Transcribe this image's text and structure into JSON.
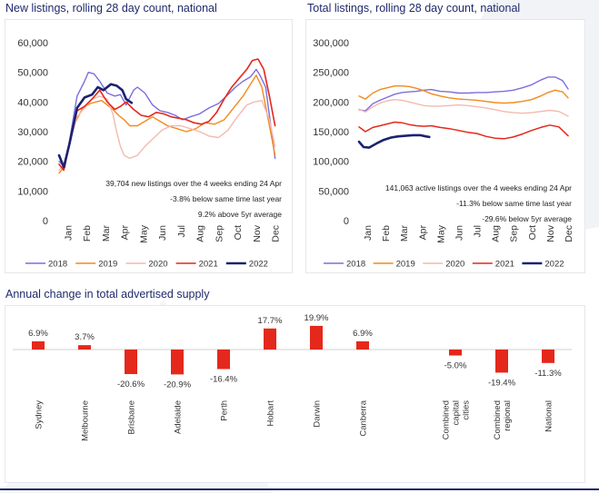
{
  "colors": {
    "title": "#1f2a6b",
    "y2018": "#7b6fdc",
    "y2019": "#f28a1c",
    "y2020": "#f4b9b0",
    "y2021": "#e4281b",
    "y2022": "#1c2270",
    "bar": "#e4281b"
  },
  "titles": {
    "new": "New listings, rolling 28 day count, national",
    "total": "Total listings, rolling 28 day count, national",
    "annual": "Annual change in total advertised supply"
  },
  "chart_data": [
    {
      "id": "new",
      "type": "line",
      "title": "New listings, rolling 28 day count, national",
      "ylim": [
        0,
        60000
      ],
      "yticks": [
        "0",
        "10,000",
        "20,000",
        "30,000",
        "40,000",
        "50,000",
        "60,000"
      ],
      "ytick_values": [
        0,
        10000,
        20000,
        30000,
        40000,
        50000,
        60000
      ],
      "months": [
        "Jan",
        "Feb",
        "Mar",
        "Apr",
        "May",
        "Jun",
        "Jul",
        "Aug",
        "Sep",
        "Oct",
        "Nov",
        "Dec"
      ],
      "annotations": [
        "39,704 new listings over the 4 weeks ending 24 Apr",
        "-3.8% below same time last year",
        "9.2% above 5yr average"
      ],
      "series": [
        {
          "name": "2018",
          "color": "#7b6fdc",
          "width": 1.4,
          "x": [
            0.05,
            0.35,
            0.6,
            1.0,
            1.4,
            1.6,
            1.9,
            2.2,
            2.6,
            3.0,
            3.3,
            3.6,
            4.0,
            4.2,
            4.6,
            5.0,
            5.4,
            5.8,
            6.2,
            6.6,
            7.0,
            7.5,
            8.0,
            8.5,
            9.0,
            9.4,
            9.8,
            10.2,
            10.5,
            10.7,
            11.0,
            11.5
          ],
          "y": [
            20000,
            18000,
            27000,
            42000,
            47000,
            50000,
            49500,
            47000,
            43000,
            42000,
            42500,
            39000,
            44000,
            45000,
            43000,
            39000,
            37000,
            36500,
            35500,
            34000,
            35000,
            36000,
            38000,
            39500,
            42500,
            45000,
            47000,
            48500,
            51000,
            49000,
            45000,
            21000
          ]
        },
        {
          "name": "2019",
          "color": "#f28a1c",
          "width": 1.4,
          "x": [
            0.05,
            0.3,
            0.5,
            0.9,
            1.3,
            1.7,
            2.0,
            2.3,
            2.6,
            2.9,
            3.2,
            3.5,
            3.8,
            4.2,
            4.6,
            5.0,
            5.4,
            5.8,
            6.3,
            6.8,
            7.3,
            7.8,
            8.3,
            8.8,
            9.3,
            9.8,
            10.2,
            10.5,
            10.8,
            11.2,
            11.5
          ],
          "y": [
            16000,
            18000,
            24000,
            33000,
            38000,
            39500,
            40000,
            40500,
            39000,
            37500,
            35500,
            34000,
            32000,
            32000,
            33500,
            35000,
            33500,
            32000,
            31000,
            30000,
            31000,
            33000,
            32500,
            34000,
            38000,
            42000,
            46000,
            49000,
            45000,
            32000,
            22000
          ]
        },
        {
          "name": "2020",
          "color": "#f4b9b0",
          "width": 1.4,
          "x": [
            0.05,
            0.3,
            0.6,
            1.0,
            1.4,
            1.8,
            2.2,
            2.6,
            2.9,
            3.1,
            3.3,
            3.5,
            3.8,
            4.2,
            4.6,
            5.0,
            5.5,
            6.0,
            6.5,
            7.0,
            7.5,
            8.0,
            8.5,
            9.0,
            9.5,
            10.0,
            10.4,
            10.8,
            11.2,
            11.5
          ],
          "y": [
            17000,
            19000,
            26000,
            35000,
            38000,
            41000,
            42000,
            41000,
            36000,
            30000,
            25000,
            22000,
            21000,
            22000,
            25000,
            27500,
            30500,
            32000,
            32000,
            31000,
            30000,
            28500,
            28000,
            30500,
            35000,
            39000,
            40000,
            40500,
            34000,
            25000
          ]
        },
        {
          "name": "2021",
          "color": "#e4281b",
          "width": 1.6,
          "x": [
            0.05,
            0.3,
            0.6,
            1.0,
            1.4,
            1.8,
            2.2,
            2.6,
            3.0,
            3.3,
            3.6,
            4.0,
            4.4,
            4.8,
            5.2,
            5.6,
            6.0,
            6.4,
            6.8,
            7.2,
            7.6,
            8.0,
            8.4,
            8.8,
            9.2,
            9.6,
            10.0,
            10.3,
            10.6,
            10.9,
            11.2,
            11.5
          ],
          "y": [
            19000,
            17000,
            26000,
            37000,
            38500,
            41000,
            44000,
            40000,
            37500,
            38500,
            40000,
            37500,
            35500,
            35000,
            36500,
            36000,
            35000,
            34500,
            34000,
            33000,
            32500,
            33500,
            36500,
            41000,
            45000,
            48000,
            51000,
            54000,
            54500,
            51000,
            42000,
            32000
          ]
        },
        {
          "name": "2022",
          "color": "#1c2270",
          "width": 2.6,
          "x": [
            0.05,
            0.3,
            0.6,
            1.0,
            1.4,
            1.8,
            2.1,
            2.4,
            2.8,
            3.1,
            3.4,
            3.6,
            3.9
          ],
          "y": [
            22000,
            18000,
            26000,
            38000,
            41500,
            42500,
            45000,
            44000,
            46000,
            45500,
            44000,
            41000,
            39700
          ]
        }
      ]
    },
    {
      "id": "total",
      "type": "line",
      "title": "Total listings, rolling 28 day count, national",
      "ylim": [
        0,
        300000
      ],
      "yticks": [
        "0",
        "50,000",
        "100,000",
        "150,000",
        "200,000",
        "250,000",
        "300,000"
      ],
      "ytick_values": [
        0,
        50000,
        100000,
        150000,
        200000,
        250000,
        300000
      ],
      "months": [
        "Jan",
        "Feb",
        "Mar",
        "Apr",
        "May",
        "Jun",
        "Jul",
        "Aug",
        "Sep",
        "Oct",
        "Nov",
        "Dec"
      ],
      "annotations": [
        "141,063 active listings over the 4 weeks ending 24 Apr",
        "-11.3% below same time last year",
        "-29.6% below 5yr average"
      ],
      "series": [
        {
          "name": "2018",
          "color": "#7b6fdc",
          "width": 1.4,
          "x": [
            0.05,
            0.4,
            0.8,
            1.2,
            1.6,
            2.0,
            2.4,
            2.8,
            3.2,
            3.6,
            4.0,
            4.5,
            5.0,
            5.5,
            6.0,
            6.5,
            7.0,
            7.5,
            8.0,
            8.5,
            9.0,
            9.5,
            10.0,
            10.4,
            10.8,
            11.2,
            11.5
          ],
          "y": [
            187000,
            185000,
            197000,
            203000,
            208000,
            213000,
            216000,
            217000,
            218000,
            220000,
            221000,
            218000,
            217000,
            215000,
            215000,
            216000,
            216000,
            217000,
            218000,
            220000,
            224000,
            229000,
            237000,
            242000,
            242000,
            236000,
            222000
          ]
        },
        {
          "name": "2019",
          "color": "#f28a1c",
          "width": 1.4,
          "x": [
            0.05,
            0.4,
            0.8,
            1.2,
            1.6,
            2.0,
            2.4,
            2.8,
            3.2,
            3.6,
            4.0,
            4.5,
            5.0,
            5.5,
            6.0,
            6.5,
            7.0,
            7.5,
            8.0,
            8.5,
            9.0,
            9.5,
            10.0,
            10.4,
            10.8,
            11.2,
            11.5
          ],
          "y": [
            210000,
            205000,
            215000,
            221000,
            224000,
            227000,
            227000,
            226000,
            223000,
            219000,
            214000,
            210000,
            207000,
            205000,
            204000,
            203000,
            201000,
            199000,
            198000,
            199000,
            201000,
            204000,
            210000,
            216000,
            220000,
            217000,
            207000
          ]
        },
        {
          "name": "2020",
          "color": "#f4b9b0",
          "width": 1.4,
          "x": [
            0.05,
            0.4,
            0.8,
            1.2,
            1.6,
            2.0,
            2.4,
            2.8,
            3.2,
            3.6,
            4.0,
            4.5,
            5.0,
            5.5,
            6.0,
            6.5,
            7.0,
            7.5,
            8.0,
            8.5,
            9.0,
            9.5,
            10.0,
            10.5,
            11.0,
            11.5
          ],
          "y": [
            188000,
            183000,
            192000,
            198000,
            202000,
            204000,
            203000,
            200000,
            197000,
            194000,
            193000,
            193000,
            194000,
            195000,
            194000,
            192000,
            190000,
            187000,
            184000,
            182000,
            181000,
            182000,
            184000,
            186000,
            184000,
            176000
          ]
        },
        {
          "name": "2021",
          "color": "#e4281b",
          "width": 1.5,
          "x": [
            0.05,
            0.4,
            0.8,
            1.2,
            1.6,
            2.0,
            2.4,
            2.8,
            3.2,
            3.6,
            4.0,
            4.5,
            5.0,
            5.5,
            6.0,
            6.5,
            7.0,
            7.5,
            8.0,
            8.5,
            9.0,
            9.5,
            10.0,
            10.5,
            11.0,
            11.5
          ],
          "y": [
            158000,
            150000,
            157000,
            160000,
            163000,
            166000,
            165000,
            162000,
            160000,
            159000,
            160000,
            157000,
            155000,
            152000,
            149000,
            147000,
            142000,
            139000,
            138000,
            141000,
            146000,
            152000,
            157000,
            161000,
            158000,
            143000
          ]
        },
        {
          "name": "2022",
          "color": "#1c2270",
          "width": 2.6,
          "x": [
            0.05,
            0.3,
            0.6,
            1.0,
            1.4,
            1.8,
            2.2,
            2.6,
            3.0,
            3.4,
            3.7,
            3.9
          ],
          "y": [
            133000,
            124000,
            123000,
            130000,
            136000,
            140000,
            142000,
            143000,
            144000,
            144000,
            142000,
            141000
          ]
        }
      ]
    },
    {
      "id": "annual",
      "type": "bar",
      "title": "Annual change in total advertised supply",
      "unit": "%",
      "categories": [
        "Sydney",
        "Melbourne",
        "Brisbane",
        "Adelaide",
        "Perth",
        "Hobart",
        "Darwin",
        "Canberra",
        "Combined capital cities",
        "Combined regional",
        "National"
      ],
      "labels": [
        "6.9%",
        "3.7%",
        "-20.6%",
        "-20.9%",
        "-16.4%",
        "17.7%",
        "19.9%",
        "6.9%",
        "-5.0%",
        "-19.4%",
        "-11.3%"
      ],
      "values": [
        6.9,
        3.7,
        -20.6,
        -20.9,
        -16.4,
        17.7,
        19.9,
        6.9,
        -5.0,
        -19.4,
        -11.3
      ],
      "ylim": [
        -25,
        25
      ]
    }
  ]
}
